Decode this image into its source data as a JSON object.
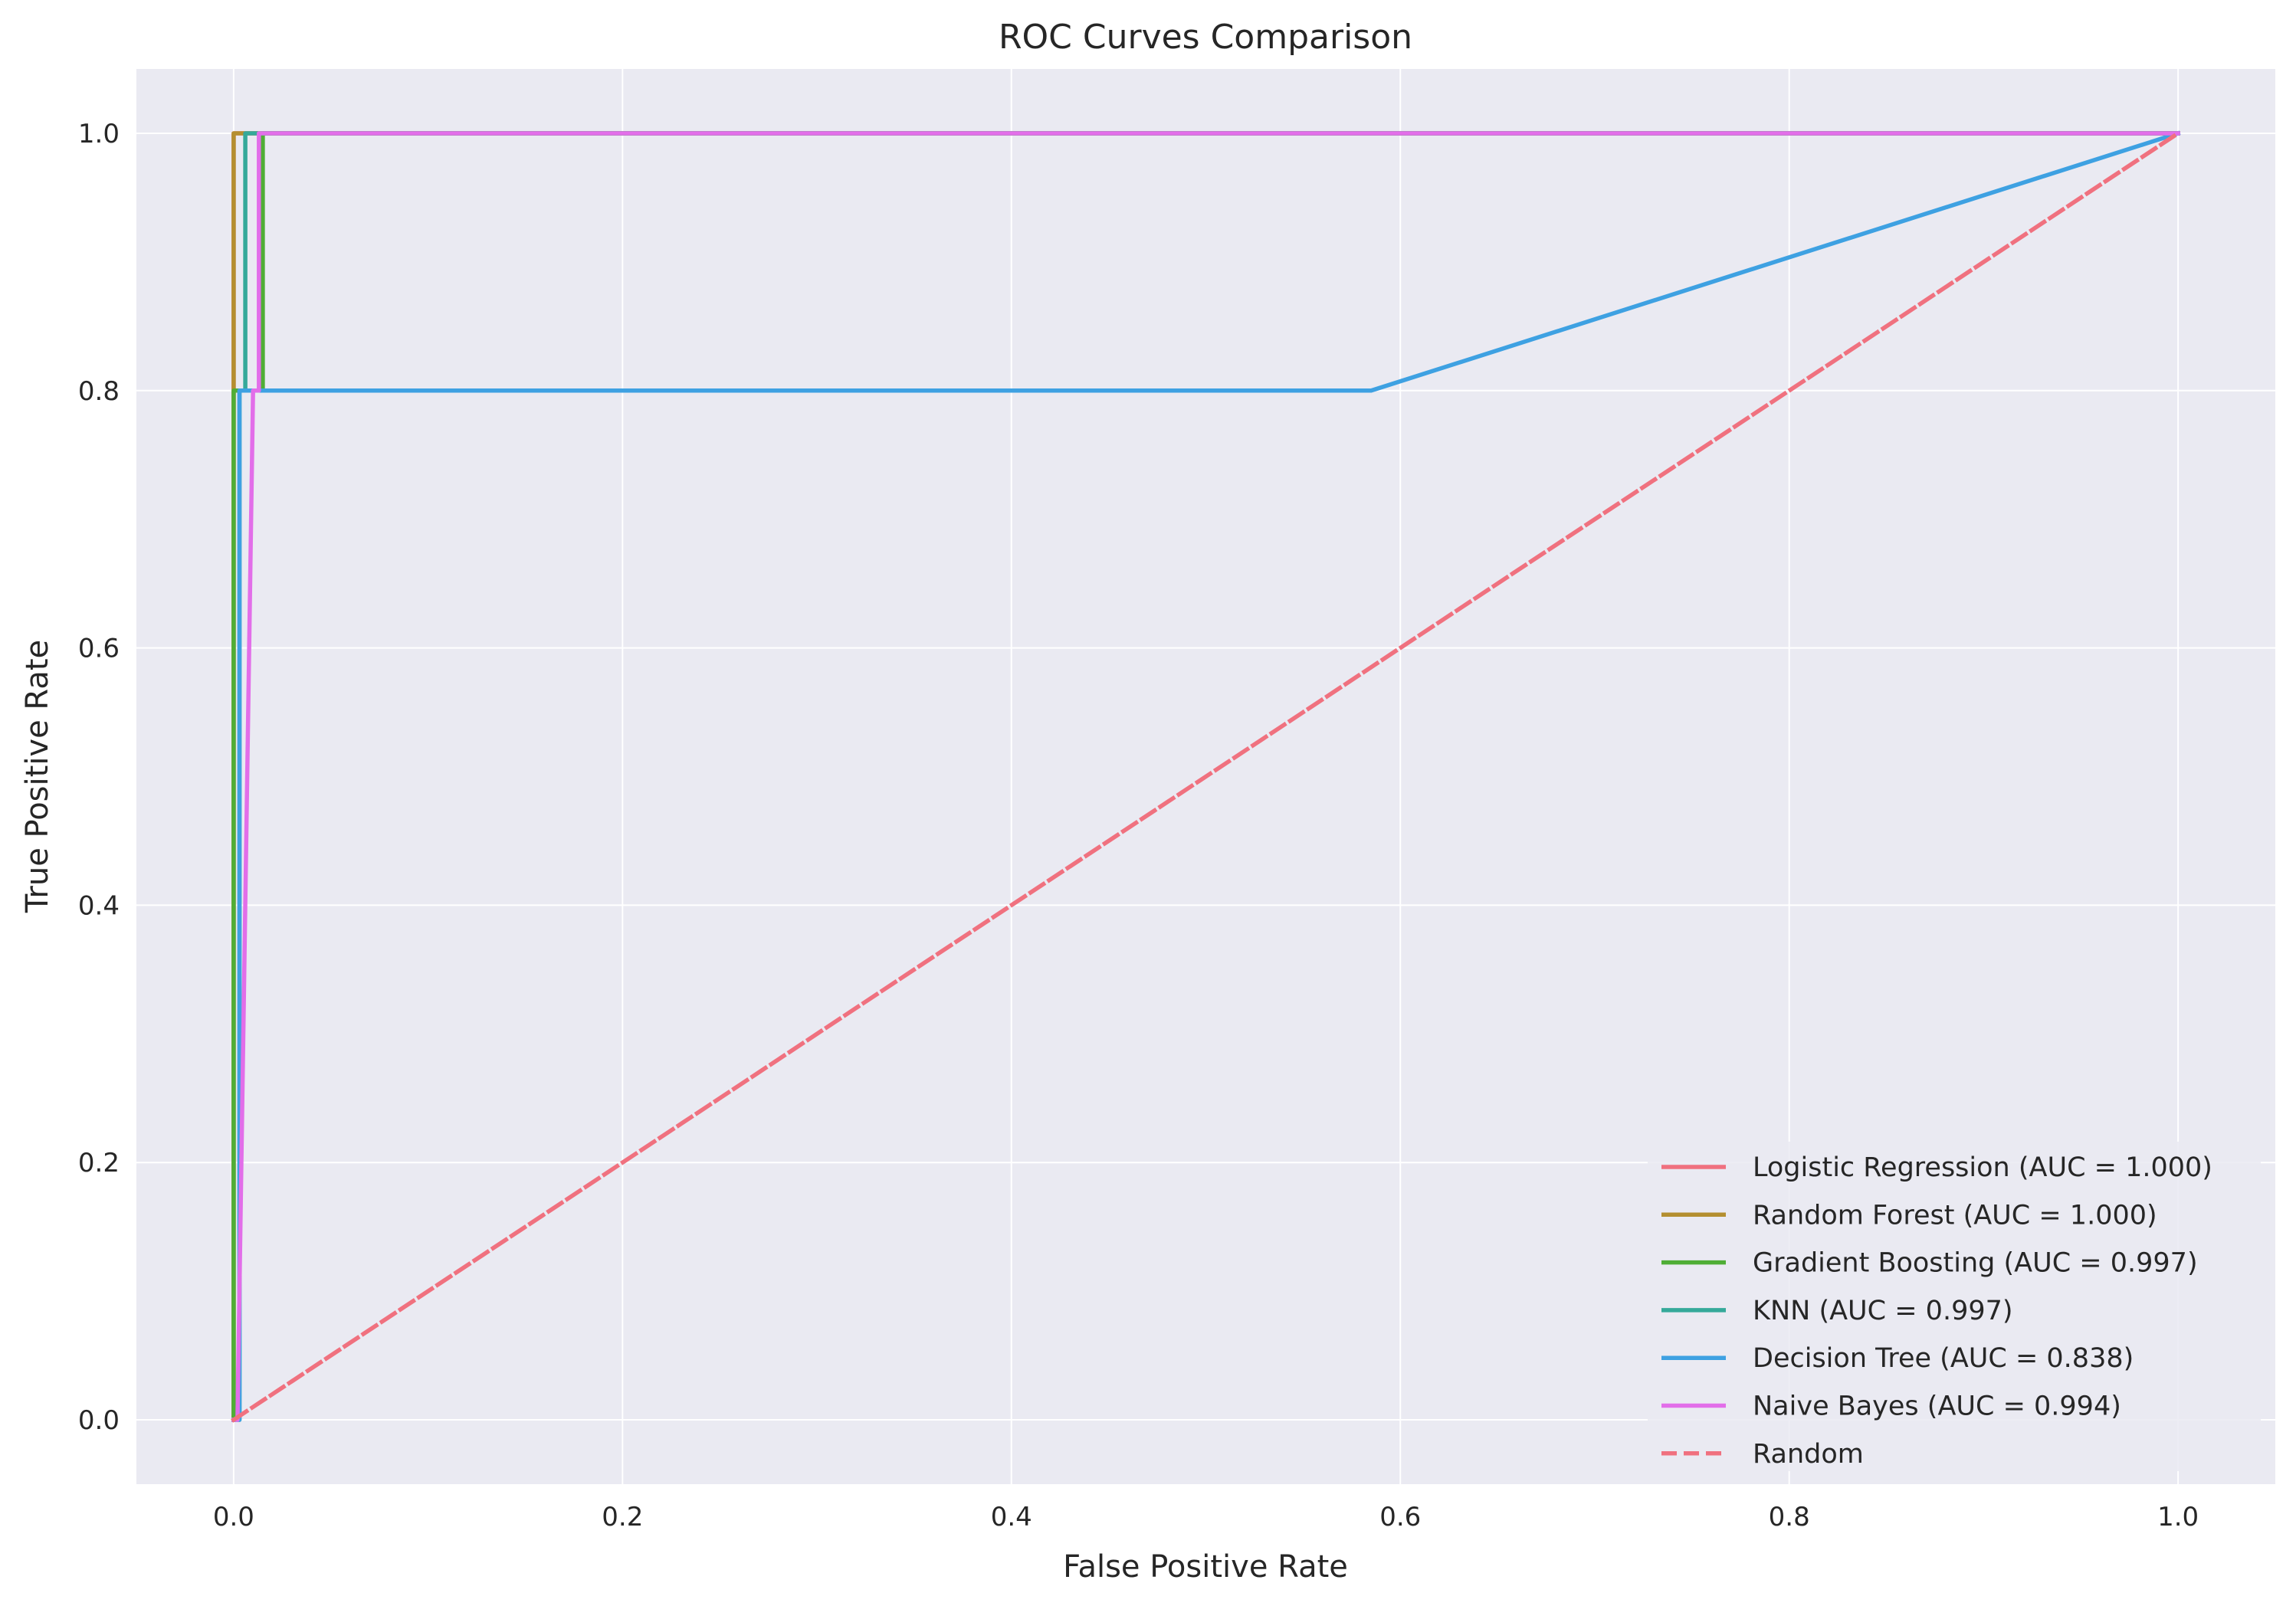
{
  "chart_data": {
    "type": "line",
    "title": "ROC Curves Comparison",
    "xlabel": "False Positive Rate",
    "ylabel": "True Positive Rate",
    "xlim": [
      -0.05,
      1.05
    ],
    "ylim": [
      -0.05,
      1.05
    ],
    "x_ticks": [
      0.0,
      0.2,
      0.4,
      0.6,
      0.8,
      1.0
    ],
    "y_ticks": [
      0.0,
      0.2,
      0.4,
      0.6,
      0.8,
      1.0
    ],
    "x_tick_labels": [
      "0.0",
      "0.2",
      "0.4",
      "0.6",
      "0.8",
      "1.0"
    ],
    "y_tick_labels": [
      "0.0",
      "0.2",
      "0.4",
      "0.6",
      "0.8",
      "1.0"
    ],
    "grid": true,
    "background": "#eaeaf2",
    "legend_position": "lower-right",
    "series": [
      {
        "name": "Logistic Regression (AUC = 1.000)",
        "color": "#f0717f",
        "dashed": false,
        "x": [
          0.0,
          0.0,
          0.0,
          1.0
        ],
        "y": [
          0.0,
          0.8,
          1.0,
          1.0
        ]
      },
      {
        "name": "Random Forest (AUC = 1.000)",
        "color": "#b48f30",
        "dashed": false,
        "x": [
          0.0,
          0.0,
          0.0,
          1.0
        ],
        "y": [
          0.0,
          0.6,
          1.0,
          1.0
        ]
      },
      {
        "name": "Gradient Boosting (AUC = 0.997)",
        "color": "#4fae36",
        "dashed": false,
        "x": [
          0.0,
          0.0,
          0.0,
          0.015,
          0.015,
          1.0
        ],
        "y": [
          0.0,
          0.6,
          0.8,
          0.8,
          1.0,
          1.0
        ]
      },
      {
        "name": "KNN (AUC = 0.997)",
        "color": "#35a99a",
        "dashed": false,
        "x": [
          0.0,
          0.003,
          0.003,
          0.006,
          0.006,
          1.0
        ],
        "y": [
          0.0,
          0.0,
          0.8,
          0.8,
          1.0,
          1.0
        ]
      },
      {
        "name": "Decision Tree (AUC = 0.838)",
        "color": "#3ea1e2",
        "dashed": false,
        "x": [
          0.0,
          0.003,
          0.003,
          0.585,
          1.0
        ],
        "y": [
          0.0,
          0.0,
          0.8,
          0.8,
          1.0
        ]
      },
      {
        "name": "Naive Bayes (AUC = 0.994)",
        "color": "#e26ee9",
        "dashed": false,
        "x": [
          0.0,
          0.002,
          0.01,
          0.013,
          0.013,
          1.0
        ],
        "y": [
          0.0,
          0.0,
          0.8,
          0.8,
          1.0,
          1.0
        ]
      },
      {
        "name": "Random",
        "color": "#f0717f",
        "dashed": true,
        "x": [
          0.0,
          1.0
        ],
        "y": [
          0.0,
          1.0
        ]
      }
    ]
  }
}
